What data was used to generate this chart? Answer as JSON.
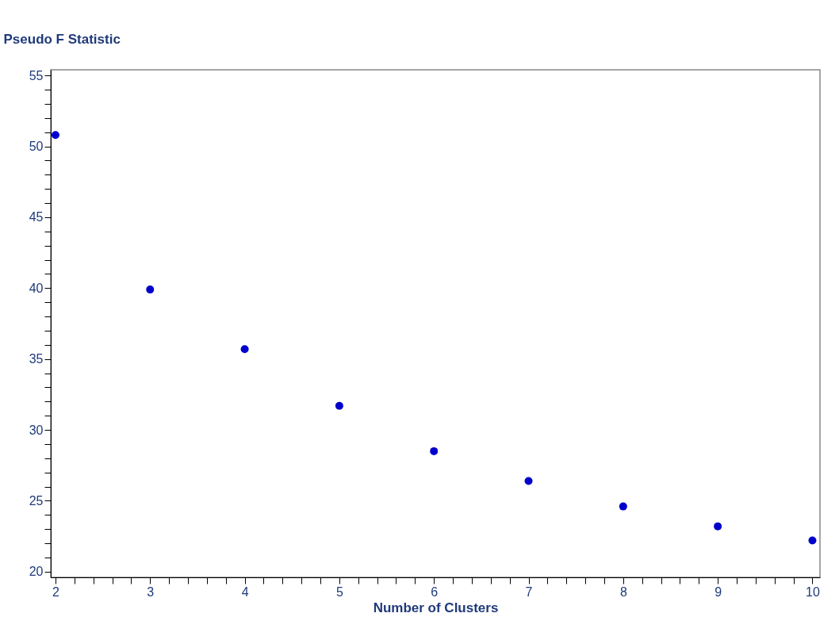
{
  "chart_data": {
    "type": "scatter",
    "xlabel": "Number of Clusters",
    "ylabel": "Pseudo F Statistic",
    "x": [
      2,
      3,
      4,
      5,
      6,
      7,
      8,
      9,
      10
    ],
    "series": [
      {
        "color": "#0000cc",
        "values": [
          50.8,
          39.9,
          35.7,
          31.7,
          28.5,
          26.4,
          24.6,
          23.2,
          22.2
        ]
      }
    ],
    "xlim": [
      1.95,
      10.08
    ],
    "ylim": [
      19.6,
      55.4
    ],
    "xticks": [
      2,
      {
        "value": 2.2,
        "label": null
      },
      {
        "value": 2.4,
        "label": null
      },
      {
        "value": 2.6,
        "label": null
      },
      {
        "value": 2.8,
        "label": null
      },
      3,
      {
        "value": 3.2,
        "label": null
      },
      {
        "value": 3.4,
        "label": null
      },
      {
        "value": 3.6,
        "label": null
      },
      {
        "value": 3.8,
        "label": null
      },
      4,
      {
        "value": 4.2,
        "label": null
      },
      {
        "value": 4.4,
        "label": null
      },
      {
        "value": 4.6,
        "label": null
      },
      {
        "value": 4.8,
        "label": null
      },
      5,
      {
        "value": 5.2,
        "label": null
      },
      {
        "value": 5.4,
        "label": null
      },
      {
        "value": 5.6,
        "label": null
      },
      {
        "value": 5.8,
        "label": null
      },
      6,
      {
        "value": 6.2,
        "label": null
      },
      {
        "value": 6.4,
        "label": null
      },
      {
        "value": 6.6,
        "label": null
      },
      {
        "value": 6.8,
        "label": null
      },
      7,
      {
        "value": 7.2,
        "label": null
      },
      {
        "value": 7.4,
        "label": null
      },
      {
        "value": 7.6,
        "label": null
      },
      {
        "value": 7.8,
        "label": null
      },
      8,
      {
        "value": 8.2,
        "label": null
      },
      {
        "value": 8.4,
        "label": null
      },
      {
        "value": 8.6,
        "label": null
      },
      {
        "value": 8.8,
        "label": null
      },
      9,
      {
        "value": 9.2,
        "label": null
      },
      {
        "value": 9.4,
        "label": null
      },
      {
        "value": 9.6,
        "label": null
      },
      {
        "value": 9.8,
        "label": null
      },
      10
    ],
    "yticks": [
      20,
      {
        "value": 21,
        "label": null
      },
      {
        "value": 22,
        "label": null
      },
      {
        "value": 23,
        "label": null
      },
      {
        "value": 24,
        "label": null
      },
      25,
      {
        "value": 26,
        "label": null
      },
      {
        "value": 27,
        "label": null
      },
      {
        "value": 28,
        "label": null
      },
      {
        "value": 29,
        "label": null
      },
      30,
      {
        "value": 31,
        "label": null
      },
      {
        "value": 32,
        "label": null
      },
      {
        "value": 33,
        "label": null
      },
      {
        "value": 34,
        "label": null
      },
      35,
      {
        "value": 36,
        "label": null
      },
      {
        "value": 37,
        "label": null
      },
      {
        "value": 38,
        "label": null
      },
      {
        "value": 39,
        "label": null
      },
      40,
      {
        "value": 41,
        "label": null
      },
      {
        "value": 42,
        "label": null
      },
      {
        "value": 43,
        "label": null
      },
      {
        "value": 44,
        "label": null
      },
      45,
      {
        "value": 46,
        "label": null
      },
      {
        "value": 47,
        "label": null
      },
      {
        "value": 48,
        "label": null
      },
      {
        "value": 49,
        "label": null
      },
      50,
      {
        "value": 51,
        "label": null
      },
      {
        "value": 52,
        "label": null
      },
      {
        "value": 53,
        "label": null
      },
      {
        "value": 54,
        "label": null
      },
      55
    ],
    "grid": false,
    "marker": "circle"
  }
}
